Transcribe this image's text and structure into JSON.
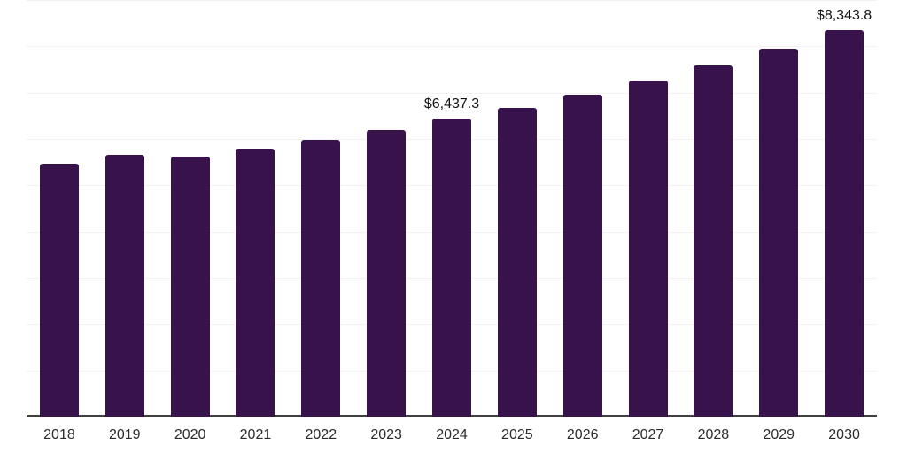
{
  "chart_data": {
    "type": "bar",
    "title": "",
    "xlabel": "",
    "ylabel": "",
    "categories": [
      "2018",
      "2019",
      "2020",
      "2021",
      "2022",
      "2023",
      "2024",
      "2025",
      "2026",
      "2027",
      "2028",
      "2029",
      "2030"
    ],
    "values": [
      5470,
      5660,
      5620,
      5785,
      5975,
      6195,
      6437.3,
      6675,
      6960,
      7260,
      7585,
      7950,
      8343.8
    ],
    "value_labels": [
      {
        "category": "2024",
        "text": "$6,437.3"
      },
      {
        "category": "2030",
        "text": "$8,343.8"
      }
    ],
    "ylim": [
      0,
      9000
    ],
    "grid": true,
    "grid_step": 1000,
    "legend_position": "none",
    "colors": {
      "bar": "#37124B",
      "grid": "#f2f2f2",
      "axis": "#404040",
      "tick_label": "#2b2b2b",
      "value_label": "#141414",
      "background": "#ffffff"
    }
  }
}
